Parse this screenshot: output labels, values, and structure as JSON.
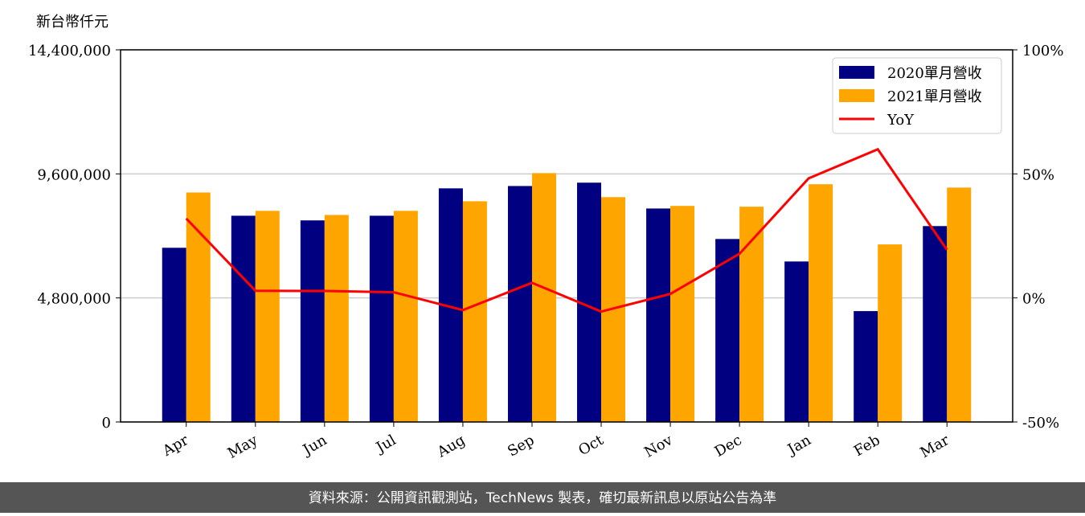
{
  "chart_data": {
    "type": "bar",
    "ylabel": "新台幣仟元",
    "categories": [
      "Apr",
      "May",
      "Jun",
      "Jul",
      "Aug",
      "Sep",
      "Oct",
      "Nov",
      "Dec",
      "Jan",
      "Feb",
      "Mar"
    ],
    "series": [
      {
        "name": "2020單月營收",
        "color": "#000080",
        "values": [
          6740000,
          7980000,
          7800000,
          7980000,
          9040000,
          9130000,
          9260000,
          8260000,
          7080000,
          6210000,
          4290000,
          7580000
        ]
      },
      {
        "name": "2021單月營收",
        "color": "#ffa500",
        "values": [
          8880000,
          8170000,
          8010000,
          8170000,
          8540000,
          9630000,
          8700000,
          8360000,
          8330000,
          9200000,
          6870000,
          9070000
        ]
      },
      {
        "name": "YoY",
        "color": "#ff0000",
        "type": "line",
        "axis": "y2",
        "values": [
          32,
          2.9,
          2.8,
          2.3,
          -4.9,
          6.1,
          -5.5,
          1.6,
          17.8,
          48.2,
          59.9,
          19.4
        ]
      }
    ],
    "ylim": [
      0,
      14400000
    ],
    "yticks": [
      0,
      {
        "value": 4800000,
        "label": "4,800,000"
      },
      {
        "value": 9600000,
        "label": "9,600,000"
      },
      {
        "value": 14400000,
        "label": "14,400,000"
      }
    ],
    "y2lim": [
      -50,
      100
    ],
    "y2ticks": [
      {
        "value": -50,
        "label": "-50%"
      },
      {
        "value": 0,
        "label": "0%"
      },
      {
        "value": 50,
        "label": "50%"
      },
      {
        "value": 100,
        "label": "100%"
      }
    ],
    "grid": true,
    "legend": "upper right",
    "source": "資料來源：公開資訊觀測站，TechNews 製表，確切最新訊息以原站公告為準"
  }
}
